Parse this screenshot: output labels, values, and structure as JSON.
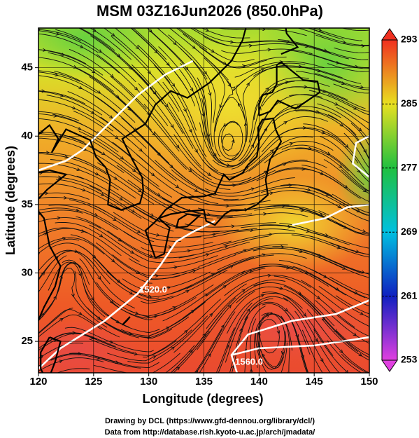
{
  "title": "MSM 03Z16Jun2026 (850.0hPa)",
  "x_axis": {
    "label": "Longitude (degrees)",
    "lim": [
      120,
      150
    ],
    "ticks": [
      120,
      125,
      130,
      135,
      140,
      145,
      150
    ]
  },
  "y_axis": {
    "label": "Latitude  (degrees)",
    "lim": [
      22.7,
      47.9
    ],
    "ticks": [
      25,
      30,
      35,
      40,
      45
    ]
  },
  "colorbar": {
    "lim": [
      253,
      293
    ],
    "ticks": [
      253,
      261,
      269,
      277,
      285,
      293
    ],
    "colors": [
      "#e040e0",
      "#1020c0",
      "#00c0e0",
      "#20c040",
      "#e8e020",
      "#f03020"
    ]
  },
  "contour_labels": [
    "1520.0",
    "1560.0"
  ],
  "footer": [
    "Drawing by DCL (https://www.gfd-dennou.org/library/dcl/)",
    "Data from http://database.rish.kyoto-u.ac.jp/arch/jmadata/"
  ]
}
